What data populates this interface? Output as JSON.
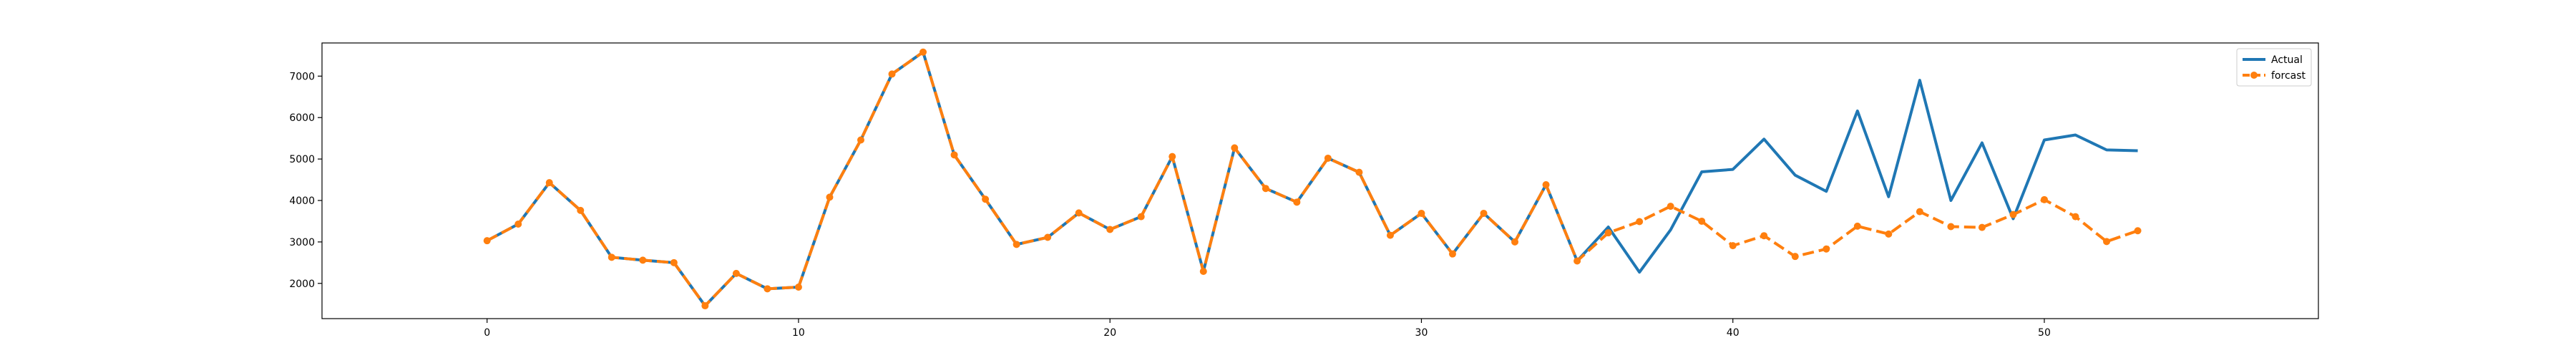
{
  "chart_data": {
    "type": "line",
    "title": "",
    "xlabel": "",
    "ylabel": "",
    "xlim": [
      -5.3,
      58.8
    ],
    "ylim": [
      1150,
      7800
    ],
    "x_ticks": [
      0,
      10,
      20,
      30,
      40,
      50
    ],
    "y_ticks": [
      2000,
      3000,
      4000,
      5000,
      6000,
      7000
    ],
    "grid": false,
    "legend_position": "top-right",
    "series": [
      {
        "name": "Actual",
        "color": "#1f77b4",
        "style": "solid",
        "marker": "none",
        "x": [
          0,
          1,
          2,
          3,
          4,
          5,
          6,
          7,
          8,
          9,
          10,
          11,
          12,
          13,
          14,
          15,
          16,
          17,
          18,
          19,
          20,
          21,
          22,
          23,
          24,
          25,
          26,
          27,
          28,
          29,
          30,
          31,
          32,
          33,
          34,
          35,
          36,
          37,
          38,
          39,
          40,
          41,
          42,
          43,
          44,
          45,
          46,
          47,
          48,
          49,
          50,
          51,
          52,
          53
        ],
        "values": [
          3030,
          3430,
          4430,
          3760,
          2630,
          2560,
          2500,
          1460,
          2240,
          1870,
          1910,
          4080,
          5460,
          7050,
          7580,
          5100,
          4030,
          2940,
          3110,
          3700,
          3300,
          3610,
          5060,
          2290,
          5270,
          4290,
          3960,
          5020,
          4680,
          3160,
          3690,
          2710,
          3690,
          3000,
          4380,
          2540,
          3360,
          2270,
          3290,
          4690,
          4750,
          5480,
          4610,
          4220,
          6160,
          4090,
          6900,
          4000,
          5390,
          3560,
          5460,
          5580,
          5220,
          5200
        ]
      },
      {
        "name": "forcast",
        "color": "#ff7f0e",
        "style": "dashed",
        "marker": "circle",
        "x": [
          0,
          1,
          2,
          3,
          4,
          5,
          6,
          7,
          8,
          9,
          10,
          11,
          12,
          13,
          14,
          15,
          16,
          17,
          18,
          19,
          20,
          21,
          22,
          23,
          24,
          25,
          26,
          27,
          28,
          29,
          30,
          31,
          32,
          33,
          34,
          35,
          36,
          37,
          38,
          39,
          40,
          41,
          42,
          43,
          44,
          45,
          46,
          47,
          48,
          49,
          50,
          51,
          52,
          53
        ],
        "values": [
          3030,
          3430,
          4430,
          3760,
          2630,
          2560,
          2500,
          1460,
          2240,
          1870,
          1910,
          4080,
          5460,
          7050,
          7580,
          5100,
          4030,
          2940,
          3110,
          3700,
          3300,
          3610,
          5060,
          2290,
          5270,
          4290,
          3960,
          5020,
          4680,
          3160,
          3690,
          2710,
          3690,
          3000,
          4380,
          2540,
          3220,
          3490,
          3860,
          3500,
          2910,
          3150,
          2650,
          2830,
          3380,
          3190,
          3730,
          3370,
          3350,
          3660,
          4020,
          3610,
          3010,
          3270
        ]
      }
    ]
  }
}
